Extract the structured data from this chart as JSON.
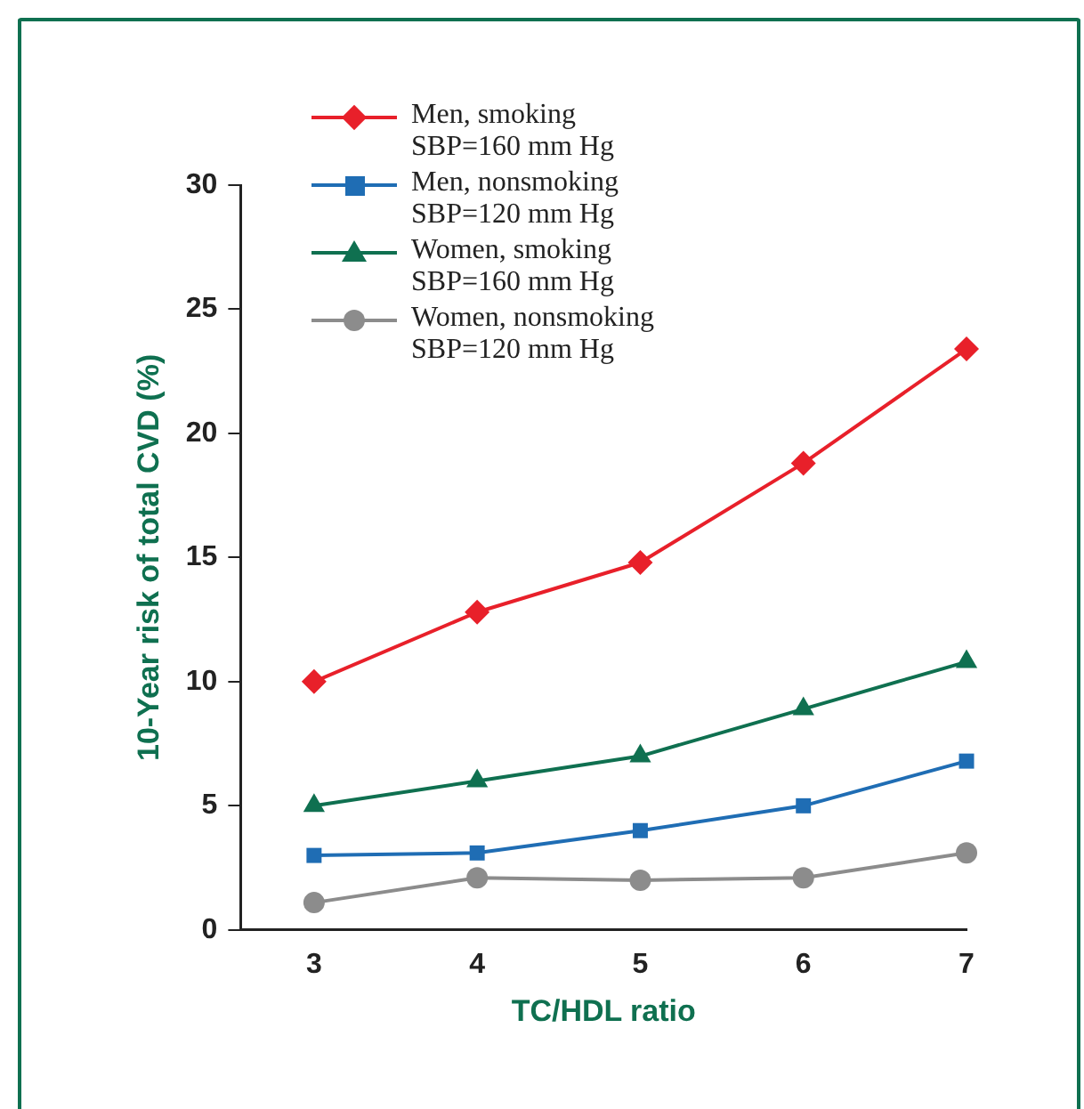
{
  "chart_data": {
    "type": "line",
    "xlabel": "TC/HDL ratio",
    "ylabel": "10-Year risk of total CVD (%)",
    "x": [
      3,
      4,
      5,
      6,
      7
    ],
    "xlim": [
      2.55,
      7
    ],
    "xticks": [
      3,
      4,
      5,
      6,
      7
    ],
    "ylim": [
      0,
      30
    ],
    "yticks": [
      0,
      5,
      10,
      15,
      20,
      25,
      30
    ],
    "grid": false,
    "legend": "top left",
    "line_style": "solid",
    "series": [
      {
        "name": "Men, smoking\nSBP=160 mm Hg",
        "color": "#e8202a",
        "marker": "diamond",
        "values": [
          10.0,
          12.8,
          14.8,
          18.8,
          23.4
        ]
      },
      {
        "name": "Men, nonsmoking\nSBP=120 mm Hg",
        "color": "#1f6db4",
        "marker": "square",
        "values": [
          3.0,
          3.1,
          4.0,
          5.0,
          6.8
        ]
      },
      {
        "name": "Women, smoking\nSBP=160 mm Hg",
        "color": "#0f7050",
        "marker": "triangle",
        "values": [
          5.0,
          6.0,
          7.0,
          8.9,
          10.8
        ]
      },
      {
        "name": "Women, nonsmoking\nSBP=120 mm Hg",
        "color": "#8c8c8c",
        "marker": "circle",
        "values": [
          1.1,
          2.1,
          2.0,
          2.1,
          3.1
        ]
      }
    ]
  }
}
